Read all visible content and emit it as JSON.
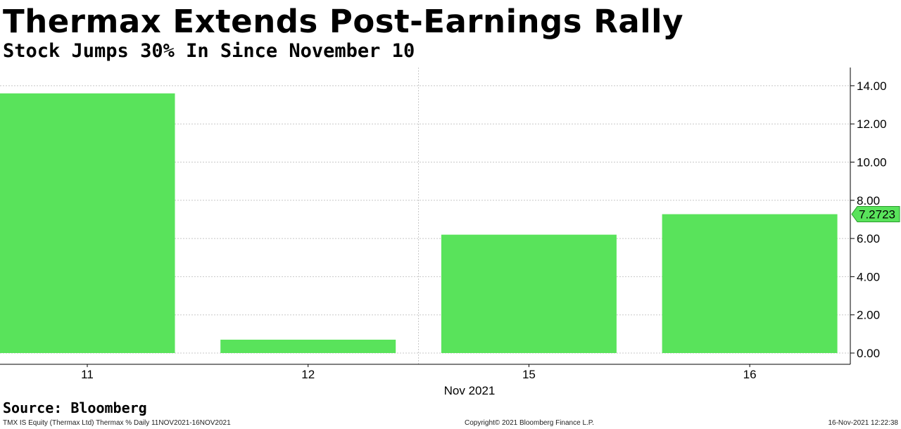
{
  "title": "Thermax Extends Post-Earnings Rally",
  "subtitle": "Stock Jumps 30% In Since November 10",
  "source": "Source: Bloomberg",
  "footer": {
    "left": "TMX IS Equity (Thermax Ltd) Thermax %  Daily 11NOV2021-16NOV2021",
    "middle": "Copyright© 2021 Bloomberg Finance L.P.",
    "right": "16-Nov-2021 12:22:38"
  },
  "colors": {
    "bar": "#59e35b",
    "grid": "#c8c8c8",
    "axis": "#000000"
  },
  "chart_data": {
    "type": "bar",
    "categories": [
      "11",
      "12",
      "15",
      "16"
    ],
    "values": [
      13.6,
      0.7,
      6.2,
      7.2723
    ],
    "xlabel": "Nov 2021",
    "ylabel": "",
    "ylim": [
      0,
      14.8
    ],
    "yticks": [
      "0.00",
      "2.00",
      "4.00",
      "6.00",
      "8.00",
      "10.00",
      "12.00",
      "14.00"
    ],
    "last_value_label": "7.2723",
    "axis_side": "right",
    "grid": true
  }
}
